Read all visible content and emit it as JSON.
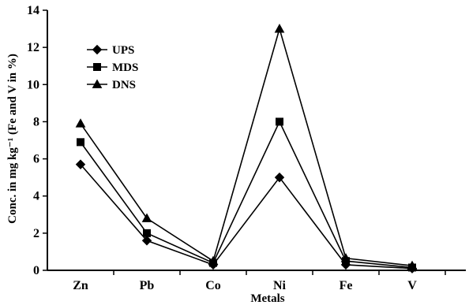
{
  "chart_data": {
    "type": "line",
    "categories": [
      "Zn",
      "Pb",
      "Co",
      "Ni",
      "Fe",
      "V"
    ],
    "series": [
      {
        "name": "UPS",
        "marker": "diamond",
        "values": [
          5.7,
          1.6,
          0.3,
          5.0,
          0.3,
          0.1
        ]
      },
      {
        "name": "MDS",
        "marker": "square",
        "values": [
          6.9,
          2.0,
          0.4,
          8.0,
          0.5,
          0.15
        ]
      },
      {
        "name": "DNS",
        "marker": "triangle",
        "values": [
          7.9,
          2.8,
          0.5,
          13.0,
          0.65,
          0.25
        ]
      }
    ],
    "xlabel": "Metals",
    "ylabel": "Conc. in mg kg⁻¹ (Fe and V in %)",
    "ylim": [
      0,
      14
    ],
    "yticks": [
      0,
      2,
      4,
      6,
      8,
      10,
      12,
      14
    ],
    "grid": false,
    "legend_position": "top-left",
    "line_color": "#000000"
  }
}
